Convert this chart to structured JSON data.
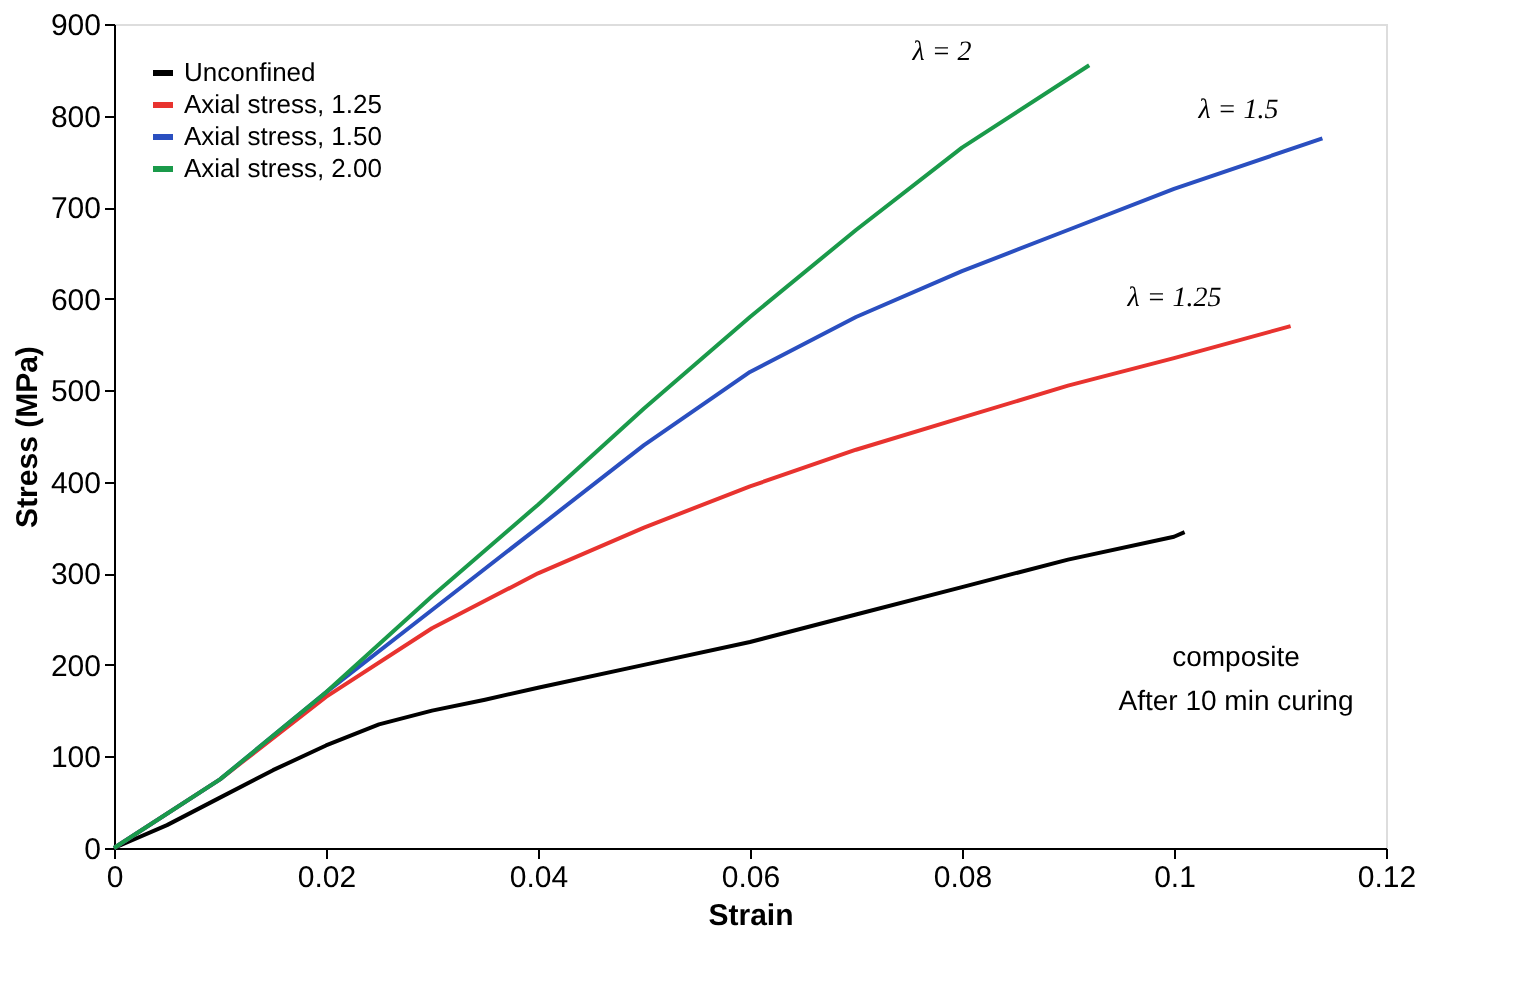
{
  "chart_data": {
    "type": "line",
    "xlabel": "Strain",
    "ylabel": "Stress (MPa)",
    "xlim": [
      0,
      0.12
    ],
    "xticks": [
      0,
      0.02,
      0.04,
      0.06,
      0.08,
      0.1,
      0.12
    ],
    "ylim": [
      0,
      900
    ],
    "yticks": [
      0,
      100,
      200,
      300,
      400,
      500,
      600,
      700,
      800,
      900
    ],
    "grid": false,
    "legend": "top left",
    "line_style": "solid",
    "series": [
      {
        "name": "Unconfined",
        "color": "#000000",
        "x": [
          0,
          0.005,
          0.01,
          0.015,
          0.02,
          0.025,
          0.03,
          0.035,
          0.04,
          0.05,
          0.06,
          0.07,
          0.08,
          0.09,
          0.1,
          0.101
        ],
        "values": [
          0,
          25,
          55,
          85,
          112,
          135,
          150,
          162,
          175,
          200,
          225,
          255,
          285,
          315,
          340,
          345
        ]
      },
      {
        "name": "Axial stress, 1.25",
        "color": "#e8332f",
        "x": [
          0,
          0.01,
          0.02,
          0.03,
          0.04,
          0.05,
          0.06,
          0.07,
          0.08,
          0.09,
          0.1,
          0.111
        ],
        "values": [
          0,
          75,
          165,
          240,
          300,
          350,
          395,
          435,
          470,
          505,
          535,
          570
        ]
      },
      {
        "name": "Axial stress, 1.50",
        "color": "#2a4fc0",
        "x": [
          0,
          0.01,
          0.02,
          0.03,
          0.04,
          0.05,
          0.06,
          0.07,
          0.08,
          0.09,
          0.1,
          0.114
        ],
        "values": [
          0,
          75,
          170,
          260,
          350,
          440,
          520,
          580,
          630,
          675,
          720,
          775
        ]
      },
      {
        "name": "Axial stress, 2.00",
        "color": "#1a9a4a",
        "x": [
          0,
          0.01,
          0.02,
          0.03,
          0.04,
          0.05,
          0.06,
          0.07,
          0.08,
          0.092
        ],
        "values": [
          0,
          75,
          170,
          275,
          375,
          480,
          580,
          675,
          765,
          855
        ]
      }
    ],
    "annotations": [
      {
        "text": "λ = 2",
        "x": 0.08,
        "y": 765
      },
      {
        "text": "λ = 1.5",
        "x": 0.114,
        "y": 775
      },
      {
        "text": "λ = 1.25",
        "x": 0.111,
        "y": 570
      },
      "composite",
      "After 10 min curing"
    ]
  }
}
